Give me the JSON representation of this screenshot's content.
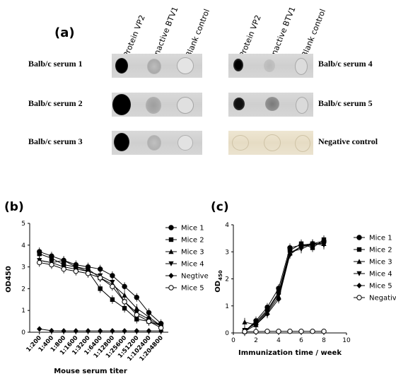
{
  "panel_a": {
    "label": "(a)",
    "columns_left": [
      "Protein VP2",
      "Inactive BTV1",
      "Blank control"
    ],
    "columns_right": [
      "Protein VP2",
      "Inactive BTV1",
      "Blank control"
    ],
    "rows_left": [
      "Balb/c serum 1",
      "Balb/c serum 2",
      "Balb/c serum 3"
    ],
    "rows_right": [
      "Balb/c serum 4",
      "Balb/c serum 5",
      "Negative control"
    ]
  },
  "chart_data": [
    {
      "panel": "(b)",
      "type": "line",
      "title": "",
      "xlabel": "Mouse serum titer",
      "ylabel": "OD450",
      "categories": [
        "1:200",
        "1:400",
        "1:800",
        "1:1600",
        "1:3200",
        "1:6400",
        "1:12800",
        "1:25600",
        "1:51200",
        "1:102400",
        "1:204800"
      ],
      "ylim": [
        0,
        5
      ],
      "yticks": [
        "0",
        "1",
        "2",
        "3",
        "4",
        "5"
      ],
      "series": [
        {
          "name": "Mice 1",
          "marker": "circle-filled",
          "values": [
            3.7,
            3.5,
            3.3,
            3.1,
            3.0,
            2.9,
            2.6,
            2.1,
            1.6,
            0.9,
            0.4
          ]
        },
        {
          "name": "Mice 2",
          "marker": "square",
          "values": [
            3.6,
            3.4,
            3.1,
            3.0,
            2.8,
            2.0,
            1.5,
            1.1,
            0.6,
            0.5,
            0.3
          ]
        },
        {
          "name": "Mice 3",
          "marker": "triangle-up",
          "values": [
            3.3,
            3.2,
            3.3,
            3.0,
            2.9,
            2.5,
            2.2,
            1.7,
            1.1,
            0.7,
            0.3
          ]
        },
        {
          "name": "Mice 4",
          "marker": "triangle-down",
          "values": [
            3.3,
            3.2,
            3.0,
            2.9,
            2.8,
            2.6,
            2.3,
            1.4,
            0.9,
            0.6,
            0.3
          ]
        },
        {
          "name": "Negtive",
          "marker": "diamond",
          "values": [
            0.15,
            0.07,
            0.06,
            0.06,
            0.06,
            0.06,
            0.06,
            0.06,
            0.06,
            0.06,
            0.06
          ]
        },
        {
          "name": "Mice 5",
          "marker": "circle-open",
          "values": [
            3.2,
            3.1,
            2.9,
            2.8,
            2.7,
            2.5,
            2.1,
            1.4,
            0.8,
            0.5,
            0.2
          ]
        }
      ]
    },
    {
      "panel": "(c)",
      "type": "line",
      "title": "",
      "xlabel": "Immunization time / week",
      "ylabel": "OD",
      "ylabel_sub": "450",
      "xlim": [
        0,
        10
      ],
      "ylim": [
        0,
        4
      ],
      "xticks": [
        "0",
        "2",
        "4",
        "6",
        "8",
        "10"
      ],
      "yticks": [
        "0",
        "1",
        "2",
        "3",
        "4"
      ],
      "x": [
        1,
        2,
        3,
        4,
        5,
        6,
        7,
        8
      ],
      "series": [
        {
          "name": "Mice 1",
          "marker": "circle-filled",
          "values": [
            0.05,
            0.45,
            0.95,
            1.65,
            3.15,
            3.25,
            3.3,
            3.4
          ]
        },
        {
          "name": "Mice 2",
          "marker": "square",
          "values": [
            0.05,
            0.4,
            0.85,
            1.5,
            3.05,
            3.3,
            3.15,
            3.45
          ]
        },
        {
          "name": "Mice 3",
          "marker": "triangle-up",
          "values": [
            0.4,
            0.3,
            0.75,
            1.35,
            2.95,
            3.2,
            3.3,
            3.3
          ]
        },
        {
          "name": "Mice 4",
          "marker": "triangle-down",
          "values": [
            0.1,
            0.35,
            0.8,
            1.45,
            3.0,
            3.1,
            3.3,
            3.25
          ]
        },
        {
          "name": "Mice 5",
          "marker": "diamond",
          "values": [
            0.05,
            0.3,
            0.7,
            1.25,
            2.9,
            3.2,
            3.25,
            3.35
          ]
        },
        {
          "name": "Negative",
          "marker": "circle-open",
          "values": [
            0.05,
            0.05,
            0.06,
            0.06,
            0.06,
            0.06,
            0.06,
            0.06
          ]
        }
      ]
    }
  ]
}
